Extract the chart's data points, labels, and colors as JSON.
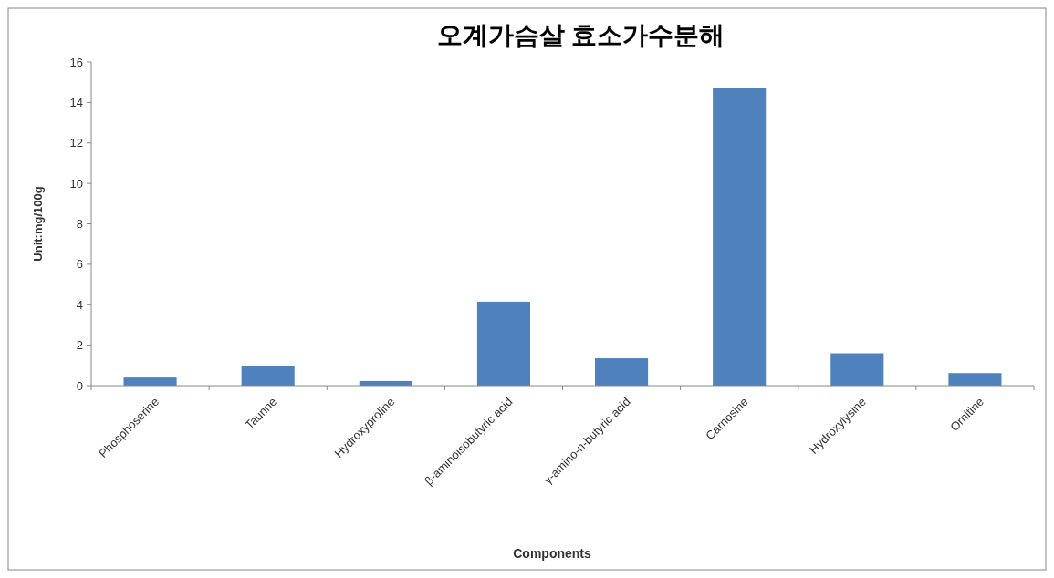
{
  "chart_data": {
    "type": "bar",
    "title": "오계가슴살 효소가수분해",
    "xlabel": "Components",
    "ylabel": "Unit:mg/100g",
    "categories": [
      "Phosphoserine",
      "Taunne",
      "Hydroxyproline",
      "β-aminoisobutyric acid",
      "γ-amino-n-butyric acid",
      "Carnosine",
      "Hydroxylysine",
      "Ornitine"
    ],
    "values": [
      0.4,
      0.95,
      0.23,
      4.15,
      1.35,
      14.7,
      1.6,
      0.62
    ],
    "color": "#4f81bd",
    "ylim": [
      0,
      16
    ],
    "yticks": [
      0,
      2,
      4,
      6,
      8,
      10,
      12,
      14,
      16
    ],
    "grid": false
  }
}
